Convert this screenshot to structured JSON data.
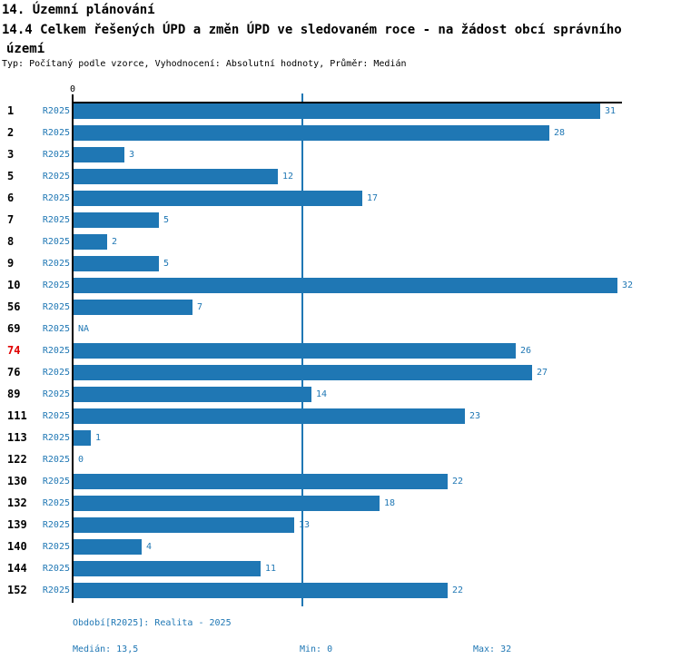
{
  "header": {
    "lines": [
      "14. Územní plánování",
      "14.4 Celkem řešených ÚPD a změn ÚPD ve sledovaném roce - na žádost obcí správního",
      "území"
    ],
    "subtitle": "Typ: Počítaný podle vzorce, Vyhodnocení: Absolutní hodnoty, Průměr: Medián"
  },
  "chart_data": {
    "type": "bar",
    "orientation": "horizontal",
    "series_label": "R2025",
    "axis": {
      "origin_tick_label": "0",
      "xlim": [
        0,
        32.2
      ],
      "value_axis_position": "top"
    },
    "median_line_value": 13.5,
    "categories": [
      "1",
      "2",
      "3",
      "5",
      "6",
      "7",
      "8",
      "9",
      "10",
      "56",
      "69",
      "74",
      "76",
      "89",
      "111",
      "113",
      "122",
      "130",
      "132",
      "139",
      "140",
      "144",
      "152"
    ],
    "rows": [
      {
        "id": "1",
        "value": 31,
        "label": "31"
      },
      {
        "id": "2",
        "value": 28,
        "label": "28"
      },
      {
        "id": "3",
        "value": 3,
        "label": "3"
      },
      {
        "id": "5",
        "value": 12,
        "label": "12"
      },
      {
        "id": "6",
        "value": 17,
        "label": "17"
      },
      {
        "id": "7",
        "value": 5,
        "label": "5"
      },
      {
        "id": "8",
        "value": 2,
        "label": "2"
      },
      {
        "id": "9",
        "value": 5,
        "label": "5"
      },
      {
        "id": "10",
        "value": 32,
        "label": "32"
      },
      {
        "id": "56",
        "value": 7,
        "label": "7"
      },
      {
        "id": "69",
        "value": null,
        "label": "NA"
      },
      {
        "id": "74",
        "value": 26,
        "label": "26",
        "highlight": true
      },
      {
        "id": "76",
        "value": 27,
        "label": "27"
      },
      {
        "id": "89",
        "value": 14,
        "label": "14"
      },
      {
        "id": "111",
        "value": 23,
        "label": "23"
      },
      {
        "id": "113",
        "value": 1,
        "label": "1"
      },
      {
        "id": "122",
        "value": 0,
        "label": "0"
      },
      {
        "id": "130",
        "value": 22,
        "label": "22"
      },
      {
        "id": "132",
        "value": 18,
        "label": "18"
      },
      {
        "id": "139",
        "value": 13,
        "label": "13"
      },
      {
        "id": "140",
        "value": 4,
        "label": "4"
      },
      {
        "id": "144",
        "value": 11,
        "label": "11"
      },
      {
        "id": "152",
        "value": 22,
        "label": "22"
      }
    ],
    "colors": {
      "bar": "#1f77b4",
      "blue_text": "#1f77b4",
      "highlight_red": "#e00000",
      "axis_black": "#000000",
      "median_line": "#1f77b4"
    }
  },
  "footer": {
    "period": "Období[R2025]: Realita - 2025",
    "median": "Medián: 13,5",
    "min": "Min: 0",
    "max": "Max: 32"
  }
}
